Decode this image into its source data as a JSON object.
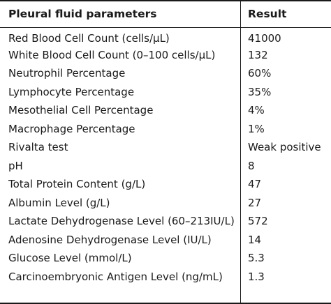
{
  "table": {
    "headers": {
      "parameter": "Pleural fluid parameters",
      "result": "Result"
    },
    "rows": [
      {
        "parameter": "Red Blood Cell Count (cells/μL)",
        "result": "41000"
      },
      {
        "parameter": "White Blood Cell Count (0–100 cells/μL)",
        "result": "132"
      },
      {
        "parameter": "Neutrophil Percentage",
        "result": "60%"
      },
      {
        "parameter": "Lymphocyte Percentage",
        "result": "35%"
      },
      {
        "parameter": "Mesothelial Cell Percentage",
        "result": "4%"
      },
      {
        "parameter": "Macrophage Percentage",
        "result": "1%"
      },
      {
        "parameter": "Rivalta test",
        "result": "Weak positive"
      },
      {
        "parameter": "pH",
        "result": "8"
      },
      {
        "parameter": "Total Protein Content (g/L)",
        "result": "47"
      },
      {
        "parameter": "Albumin Level (g/L)",
        "result": "27"
      },
      {
        "parameter": "Lactate Dehydrogenase Level (60–213IU/L)",
        "result": "572"
      },
      {
        "parameter": "Adenosine Dehydrogenase Level (IU/L)",
        "result": "14"
      },
      {
        "parameter": "Glucose Level (mmol/L)",
        "result": "5.3"
      },
      {
        "parameter": "Carcinoembryonic Antigen Level (ng/mL)",
        "result": "1.3"
      }
    ]
  }
}
